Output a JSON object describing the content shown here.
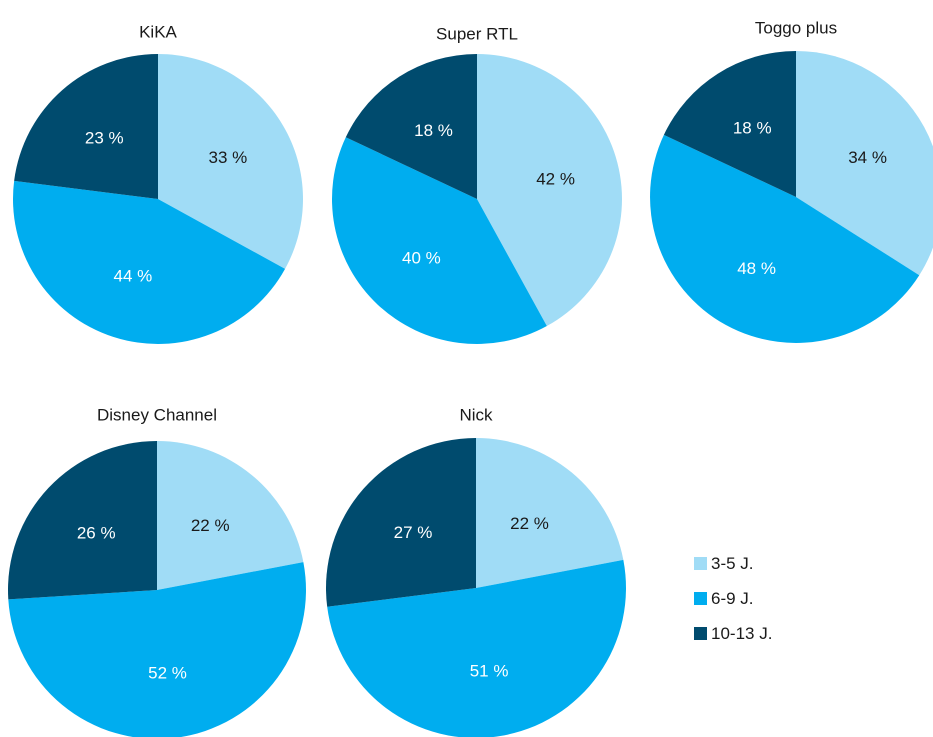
{
  "colors": {
    "3-5": "#a0dcf6",
    "6-9": "#00adef",
    "10-13": "#004b6e",
    "label_dark": "#1a1a1a",
    "label_light": "#ffffff"
  },
  "legend": {
    "position": "right",
    "items": [
      {
        "label": "3-5 J.",
        "key": "3-5"
      },
      {
        "label": "6-9 J.",
        "key": "6-9"
      },
      {
        "label": "10-13 J.",
        "key": "10-13"
      }
    ]
  },
  "chart_data": [
    {
      "type": "pie",
      "title": "KiKA",
      "categories": [
        "3-5 J.",
        "6-9 J.",
        "10-13 J."
      ],
      "values": [
        33,
        44,
        23
      ],
      "labels": [
        "33 %",
        "44 %",
        "23 %"
      ]
    },
    {
      "type": "pie",
      "title": "Super RTL",
      "categories": [
        "3-5 J.",
        "6-9 J.",
        "10-13 J."
      ],
      "values": [
        42,
        40,
        18
      ],
      "labels": [
        "42 %",
        "40 %",
        "18 %"
      ]
    },
    {
      "type": "pie",
      "title": "Toggo plus",
      "categories": [
        "3-5 J.",
        "6-9 J.",
        "10-13 J."
      ],
      "values": [
        34,
        48,
        18
      ],
      "labels": [
        "34 %",
        "48 %",
        "18 %"
      ]
    },
    {
      "type": "pie",
      "title": "Disney Channel",
      "categories": [
        "3-5 J.",
        "6-9 J.",
        "10-13 J."
      ],
      "values": [
        22,
        52,
        26
      ],
      "labels": [
        "22 %",
        "52 %",
        "26 %"
      ]
    },
    {
      "type": "pie",
      "title": "Nick",
      "categories": [
        "3-5 J.",
        "6-9 J.",
        "10-13 J."
      ],
      "values": [
        22,
        51,
        27
      ],
      "labels": [
        "22 %",
        "51 %",
        "27 %"
      ]
    }
  ]
}
